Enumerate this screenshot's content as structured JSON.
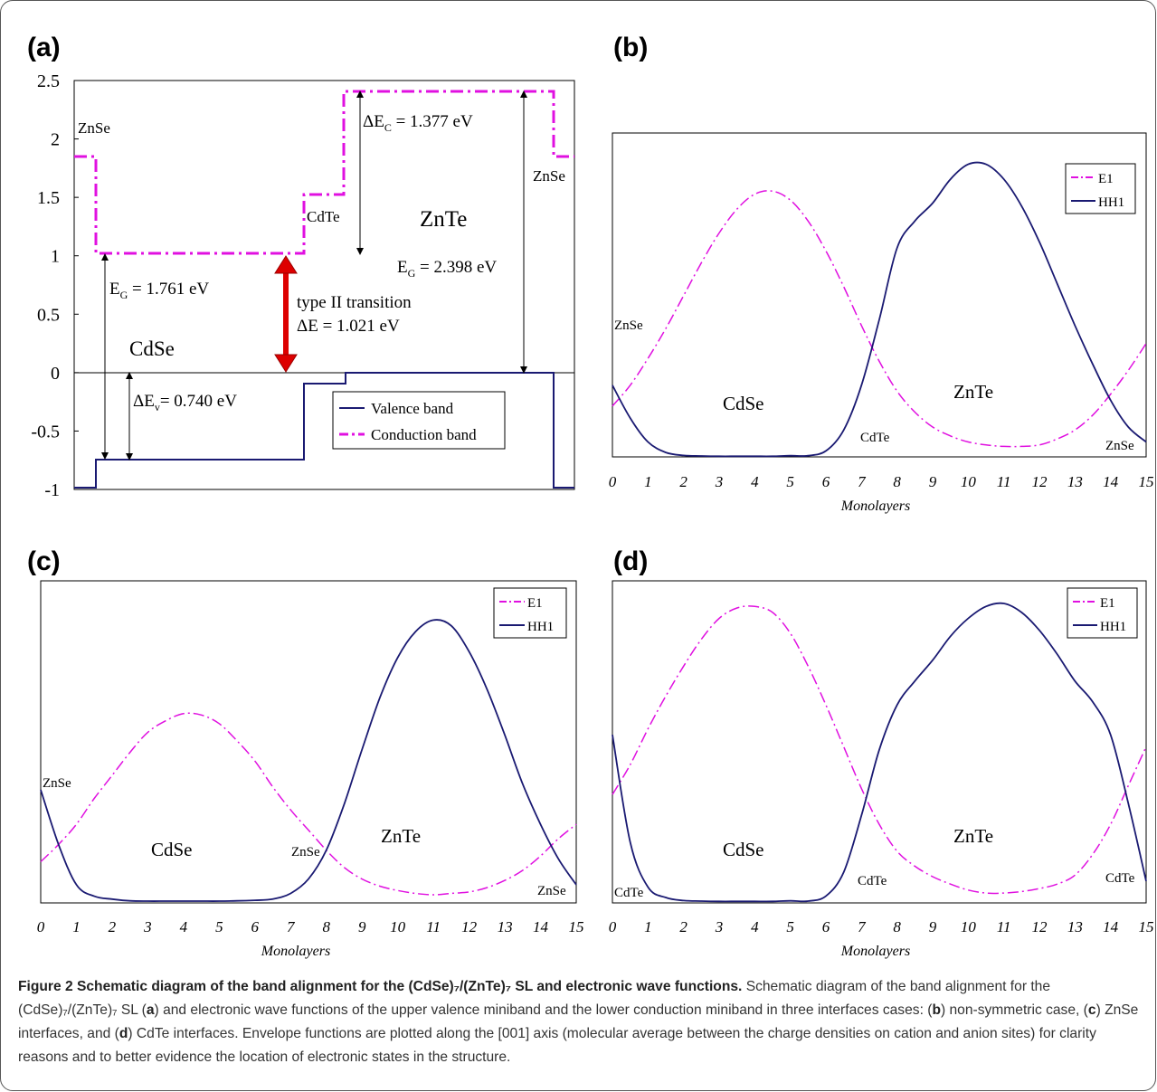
{
  "panels": {
    "a": {
      "label": "(a)"
    },
    "b": {
      "label": "(b)"
    },
    "c": {
      "label": "(c)"
    },
    "d": {
      "label": "(d)"
    }
  },
  "band_diagram": {
    "y_ticks": [
      "2.5",
      "2",
      "1.5",
      "1",
      "0.5",
      "0",
      "-0.5",
      "-1"
    ],
    "region_labels": {
      "znse_left": "ZnSe",
      "cdse": "CdSe",
      "cdte": "CdTe",
      "znte": "ZnTe",
      "znse_right": "ZnSe"
    },
    "annotations": {
      "eg_cdse_main": "E",
      "eg_cdse_sub": "G",
      "eg_cdse_val": " = 1.761 eV",
      "dec_main": "ΔE",
      "dec_sub": "C",
      "dec_val": " = 1.377 eV",
      "eg_znte_main": "E",
      "eg_znte_sub": "G",
      "eg_znte_val": " = 2.398 eV",
      "dev_main": "ΔE",
      "dev_sub": "v",
      "dev_val": "= 0.740 eV",
      "transition_line1": "type II transition",
      "transition_line2": "ΔE = 1.021 eV"
    },
    "legend": [
      "Valence band",
      "Conduction band"
    ],
    "colors": {
      "valence": "#1a1a72",
      "conduction": "#e010e0",
      "arrow": "#dd0000"
    }
  },
  "chart_data": [
    {
      "panel": "a",
      "type": "line",
      "ylim": [
        -1,
        2.5
      ],
      "x_segments": [
        "ZnSe",
        "CdSe",
        "CdTe",
        "ZnTe",
        "ZnSe"
      ],
      "series": [
        {
          "name": "Valence band",
          "values": [
            -0.98,
            -0.74,
            -0.09,
            0.0,
            -0.98
          ]
        },
        {
          "name": "Conduction band",
          "values": [
            1.84,
            1.021,
            1.52,
            2.398,
            1.84
          ]
        }
      ],
      "gaps": {
        "EG_CdSe": 1.761,
        "dEC": 1.377,
        "EG_ZnTe": 2.398,
        "dEv": 0.74,
        "dE_typeII": 1.021
      }
    },
    {
      "panel": "b",
      "type": "line",
      "xlabel": "Monolayers",
      "xlim": [
        0,
        15
      ],
      "x_ticks": [
        0,
        1,
        2,
        3,
        4,
        5,
        6,
        7,
        8,
        9,
        10,
        11,
        12,
        13,
        14,
        15
      ],
      "series": [
        {
          "name": "E1",
          "x": [
            0,
            0.5,
            1,
            1.5,
            2,
            2.5,
            3,
            3.5,
            4,
            4.5,
            5,
            5.5,
            6,
            6.5,
            7,
            7.5,
            8,
            8.5,
            9,
            9.5,
            10,
            10.5,
            11,
            11.5,
            12,
            12.5,
            13,
            13.5,
            14,
            14.5,
            15
          ],
          "values": [
            0.17,
            0.24,
            0.33,
            0.43,
            0.54,
            0.65,
            0.75,
            0.83,
            0.88,
            0.89,
            0.86,
            0.79,
            0.69,
            0.57,
            0.44,
            0.32,
            0.22,
            0.15,
            0.1,
            0.07,
            0.05,
            0.04,
            0.035,
            0.035,
            0.04,
            0.06,
            0.09,
            0.14,
            0.21,
            0.29,
            0.38
          ]
        },
        {
          "name": "HH1",
          "x": [
            0,
            0.5,
            1,
            1.5,
            2,
            2.5,
            3,
            3.5,
            4,
            4.5,
            5,
            5.5,
            6,
            6.5,
            7,
            7.5,
            8,
            8.5,
            9,
            9.5,
            10,
            10.5,
            11,
            11.5,
            12,
            12.5,
            13,
            13.5,
            14,
            14.5,
            15
          ],
          "values": [
            0.24,
            0.13,
            0.05,
            0.015,
            0.005,
            0.003,
            0.002,
            0.002,
            0.002,
            0.002,
            0.004,
            0.004,
            0.02,
            0.09,
            0.24,
            0.46,
            0.7,
            0.79,
            0.85,
            0.93,
            0.98,
            0.98,
            0.93,
            0.84,
            0.72,
            0.58,
            0.44,
            0.31,
            0.19,
            0.1,
            0.05
          ]
        }
      ],
      "region_labels": {
        "znse_left": "ZnSe",
        "cdse": "CdSe",
        "cdte": "CdTe",
        "znte": "ZnTe",
        "znse_right": "ZnSe"
      }
    },
    {
      "panel": "c",
      "type": "line",
      "xlabel": "Monolayers",
      "xlim": [
        0,
        15
      ],
      "x_ticks": [
        0,
        1,
        2,
        3,
        4,
        5,
        6,
        7,
        8,
        9,
        10,
        11,
        12,
        13,
        14,
        15
      ],
      "series": [
        {
          "name": "E1",
          "x": [
            0,
            0.5,
            1,
            1.5,
            2,
            2.5,
            3,
            3.5,
            4,
            4.5,
            5,
            5.5,
            6,
            6.5,
            7,
            7.5,
            8,
            8.5,
            9,
            9.5,
            10,
            10.5,
            11,
            11.5,
            12,
            12.5,
            13,
            13.5,
            14,
            14.5,
            15
          ],
          "values": [
            0.14,
            0.2,
            0.27,
            0.36,
            0.44,
            0.52,
            0.59,
            0.63,
            0.655,
            0.65,
            0.62,
            0.56,
            0.49,
            0.4,
            0.32,
            0.25,
            0.18,
            0.12,
            0.08,
            0.055,
            0.04,
            0.03,
            0.025,
            0.03,
            0.035,
            0.05,
            0.075,
            0.11,
            0.16,
            0.22,
            0.27
          ]
        },
        {
          "name": "HH1",
          "x": [
            0,
            0.5,
            1,
            1.5,
            2,
            2.5,
            3,
            3.5,
            4,
            4.5,
            5,
            5.5,
            6,
            6.5,
            7,
            7.5,
            8,
            8.5,
            9,
            9.5,
            10,
            10.5,
            11,
            11.5,
            12,
            12.5,
            13,
            13.5,
            14,
            14.5,
            15
          ],
          "values": [
            0.39,
            0.2,
            0.06,
            0.02,
            0.01,
            0.004,
            0.003,
            0.003,
            0.003,
            0.003,
            0.003,
            0.004,
            0.006,
            0.01,
            0.03,
            0.08,
            0.18,
            0.34,
            0.53,
            0.71,
            0.85,
            0.94,
            0.98,
            0.96,
            0.87,
            0.74,
            0.58,
            0.41,
            0.27,
            0.15,
            0.06
          ]
        }
      ],
      "region_labels": {
        "znse_left": "ZnSe",
        "cdse": "CdSe",
        "znse_mid": "ZnSe",
        "znte": "ZnTe",
        "znse_right": "ZnSe"
      }
    },
    {
      "panel": "d",
      "type": "line",
      "xlabel": "Monolayers",
      "xlim": [
        0,
        15
      ],
      "x_ticks": [
        0,
        1,
        2,
        3,
        4,
        5,
        6,
        7,
        8,
        9,
        10,
        11,
        12,
        13,
        14,
        15
      ],
      "series": [
        {
          "name": "E1",
          "x": [
            0,
            0.5,
            1,
            1.5,
            2,
            2.5,
            3,
            3.5,
            4,
            4.5,
            5,
            5.5,
            6,
            6.5,
            7,
            7.5,
            8,
            8.5,
            9,
            9.5,
            10,
            10.5,
            11,
            11.5,
            12,
            12.5,
            13,
            13.5,
            14,
            14.5,
            15
          ],
          "values": [
            0.36,
            0.46,
            0.58,
            0.69,
            0.79,
            0.88,
            0.95,
            0.985,
            0.99,
            0.97,
            0.9,
            0.79,
            0.66,
            0.52,
            0.38,
            0.26,
            0.17,
            0.12,
            0.085,
            0.06,
            0.04,
            0.03,
            0.03,
            0.035,
            0.045,
            0.06,
            0.09,
            0.16,
            0.26,
            0.39,
            0.52
          ]
        },
        {
          "name": "HH1",
          "x": [
            0,
            0.5,
            1,
            1.5,
            2,
            2.5,
            3,
            3.5,
            4,
            4.5,
            5,
            5.5,
            6,
            6.5,
            7,
            7.5,
            8,
            8.5,
            9,
            9.5,
            10,
            10.5,
            11,
            11.5,
            12,
            12.5,
            13,
            13.5,
            14,
            14.5,
            15
          ],
          "values": [
            0.56,
            0.2,
            0.05,
            0.015,
            0.005,
            0.003,
            0.002,
            0.002,
            0.002,
            0.002,
            0.004,
            0.003,
            0.02,
            0.1,
            0.29,
            0.51,
            0.66,
            0.74,
            0.81,
            0.89,
            0.95,
            0.99,
            1.0,
            0.97,
            0.91,
            0.83,
            0.74,
            0.67,
            0.56,
            0.33,
            0.07
          ]
        }
      ],
      "region_labels": {
        "cdte_left": "CdTe",
        "cdse": "CdSe",
        "cdte_mid": "CdTe",
        "znte": "ZnTe",
        "cdte_right": "CdTe"
      }
    }
  ],
  "caption": {
    "title": "Figure 2 Schematic diagram of the band alignment for the (CdSe)₇/(ZnTe)₇ SL and electronic wave functions.",
    "body_1": " Schematic diagram of the band alignment for the (CdSe)₇/(ZnTe)₇ SL (",
    "a": "a",
    "body_2": ") and electronic wave functions of the upper valence miniband and the lower conduction miniband in three interfaces cases: (",
    "b": "b",
    "body_3": ") non-symmetric case, (",
    "c": "c",
    "body_4": ") ZnSe interfaces, and (",
    "d": "d",
    "body_5": ") CdTe interfaces. Envelope functions are plotted along the [001] axis (molecular average between the charge densities on cation and anion sites) for clarity reasons and to better evidence the location of electronic states in the structure."
  }
}
